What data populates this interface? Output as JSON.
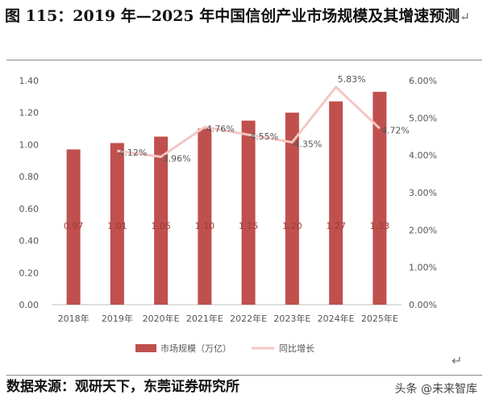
{
  "header": {
    "title": "图 115：2019 年—2025 年中国信创产业市场规模及其增速预测"
  },
  "footer": {
    "source": "数据来源：观研天下，东莞证券研究所",
    "watermark": "头条 @未来智库"
  },
  "chart_data": {
    "type": "bar",
    "categories": [
      "2018年",
      "2019年",
      "2020年E",
      "2021年E",
      "2022年E",
      "2023年E",
      "2024年E",
      "2025年E"
    ],
    "series": [
      {
        "name": "市场规模（万亿）",
        "type": "bar",
        "axis": "left",
        "values": [
          0.97,
          1.01,
          1.05,
          1.1,
          1.15,
          1.2,
          1.27,
          1.33
        ],
        "labels": [
          "0.97",
          "1.01",
          "1.05",
          "1.10",
          "1.15",
          "1.20",
          "1.27",
          "1.33"
        ],
        "color": "#c0504d"
      },
      {
        "name": "同比增长",
        "type": "line",
        "axis": "right",
        "values": [
          null,
          4.12,
          3.96,
          4.76,
          4.55,
          4.35,
          5.83,
          4.72
        ],
        "labels": [
          "",
          "4.12%",
          "3.96%",
          "4.76%",
          "4.55%",
          "4.35%",
          "5.83%",
          "4.72%"
        ],
        "color": "#f4c7c3"
      }
    ],
    "y_left": {
      "range": [
        0,
        1.4
      ],
      "ticks": [
        0.0,
        0.2,
        0.4,
        0.6,
        0.8,
        1.0,
        1.2,
        1.4
      ],
      "tick_labels": [
        "0.00",
        "0.20",
        "0.40",
        "0.60",
        "0.80",
        "1.00",
        "1.20",
        "1.40"
      ]
    },
    "y_right": {
      "range": [
        0,
        6
      ],
      "ticks": [
        0,
        1,
        2,
        3,
        4,
        5,
        6
      ],
      "tick_labels": [
        "0.00%",
        "1.00%",
        "2.00%",
        "3.00%",
        "4.00%",
        "5.00%",
        "6.00%"
      ]
    },
    "grid": false,
    "legend": "bottom"
  }
}
